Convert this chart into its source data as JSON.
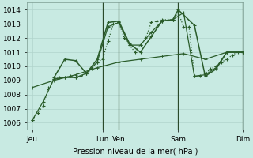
{
  "xlabel": "Pression niveau de la mer( hPa )",
  "bg_color": "#c8eae2",
  "line_color": "#2a5c2a",
  "grid_color": "#b0d4cc",
  "vline_color": "#2a4a2a",
  "ylim": [
    1005.5,
    1014.5
  ],
  "yticks": [
    1006,
    1007,
    1008,
    1009,
    1010,
    1011,
    1012,
    1013,
    1014
  ],
  "xlim": [
    0,
    40
  ],
  "x_tick_positions": [
    1,
    14,
    17,
    28,
    40
  ],
  "x_tick_labels": [
    "Jeu",
    "Lun",
    "Ven",
    "Sam",
    "Dim"
  ],
  "vline_positions": [
    14,
    17,
    28,
    40
  ],
  "series1_x": [
    1,
    2,
    3,
    4,
    5,
    6,
    7,
    8,
    9,
    10,
    11,
    12,
    13,
    14,
    15,
    16,
    17,
    18,
    19,
    20,
    21,
    22,
    23,
    24,
    25,
    26,
    27,
    28,
    29,
    30,
    31,
    32,
    33,
    34,
    35,
    36,
    37,
    38,
    39,
    40
  ],
  "series1_y": [
    1006.2,
    1006.7,
    1007.2,
    1008.5,
    1009.1,
    1009.2,
    1009.2,
    1009.3,
    1009.2,
    1009.3,
    1009.5,
    1009.8,
    1010.3,
    1010.5,
    1011.8,
    1013.0,
    1013.1,
    1012.0,
    1011.5,
    1011.0,
    1011.5,
    1012.0,
    1013.1,
    1013.2,
    1013.3,
    1013.3,
    1013.3,
    1013.8,
    1012.8,
    1012.8,
    1009.3,
    1009.3,
    1009.5,
    1009.8,
    1010.0,
    1010.3,
    1010.5,
    1010.8,
    1011.0,
    1011.0
  ],
  "series2_x": [
    1,
    3,
    5,
    7,
    9,
    11,
    13,
    15,
    17,
    19,
    21,
    23,
    25,
    27,
    29,
    31,
    33,
    35,
    37,
    40
  ],
  "series2_y": [
    1006.2,
    1007.5,
    1009.1,
    1009.2,
    1009.2,
    1009.5,
    1010.3,
    1012.8,
    1013.1,
    1011.5,
    1011.5,
    1012.4,
    1013.2,
    1013.3,
    1013.8,
    1009.3,
    1009.4,
    1009.9,
    1011.0,
    1011.0
  ],
  "series3_x": [
    5,
    7,
    9,
    11,
    13,
    15,
    17,
    19,
    21,
    23,
    25,
    27,
    28,
    31,
    33,
    35,
    37,
    40
  ],
  "series3_y": [
    1009.2,
    1010.5,
    1010.4,
    1009.5,
    1010.5,
    1013.1,
    1013.2,
    1011.6,
    1011.0,
    1012.1,
    1013.2,
    1013.3,
    1014.0,
    1012.9,
    1009.3,
    1009.8,
    1011.0,
    1011.0
  ],
  "series4_x": [
    1,
    5,
    9,
    13,
    17,
    21,
    25,
    29,
    33,
    37,
    40
  ],
  "series4_y": [
    1008.5,
    1009.0,
    1009.4,
    1009.9,
    1010.3,
    1010.5,
    1010.7,
    1010.9,
    1010.5,
    1011.0,
    1011.0
  ],
  "lw1": 0.9,
  "lw2": 0.9,
  "lw3": 1.1,
  "lw4": 0.9,
  "ms": 3.5
}
